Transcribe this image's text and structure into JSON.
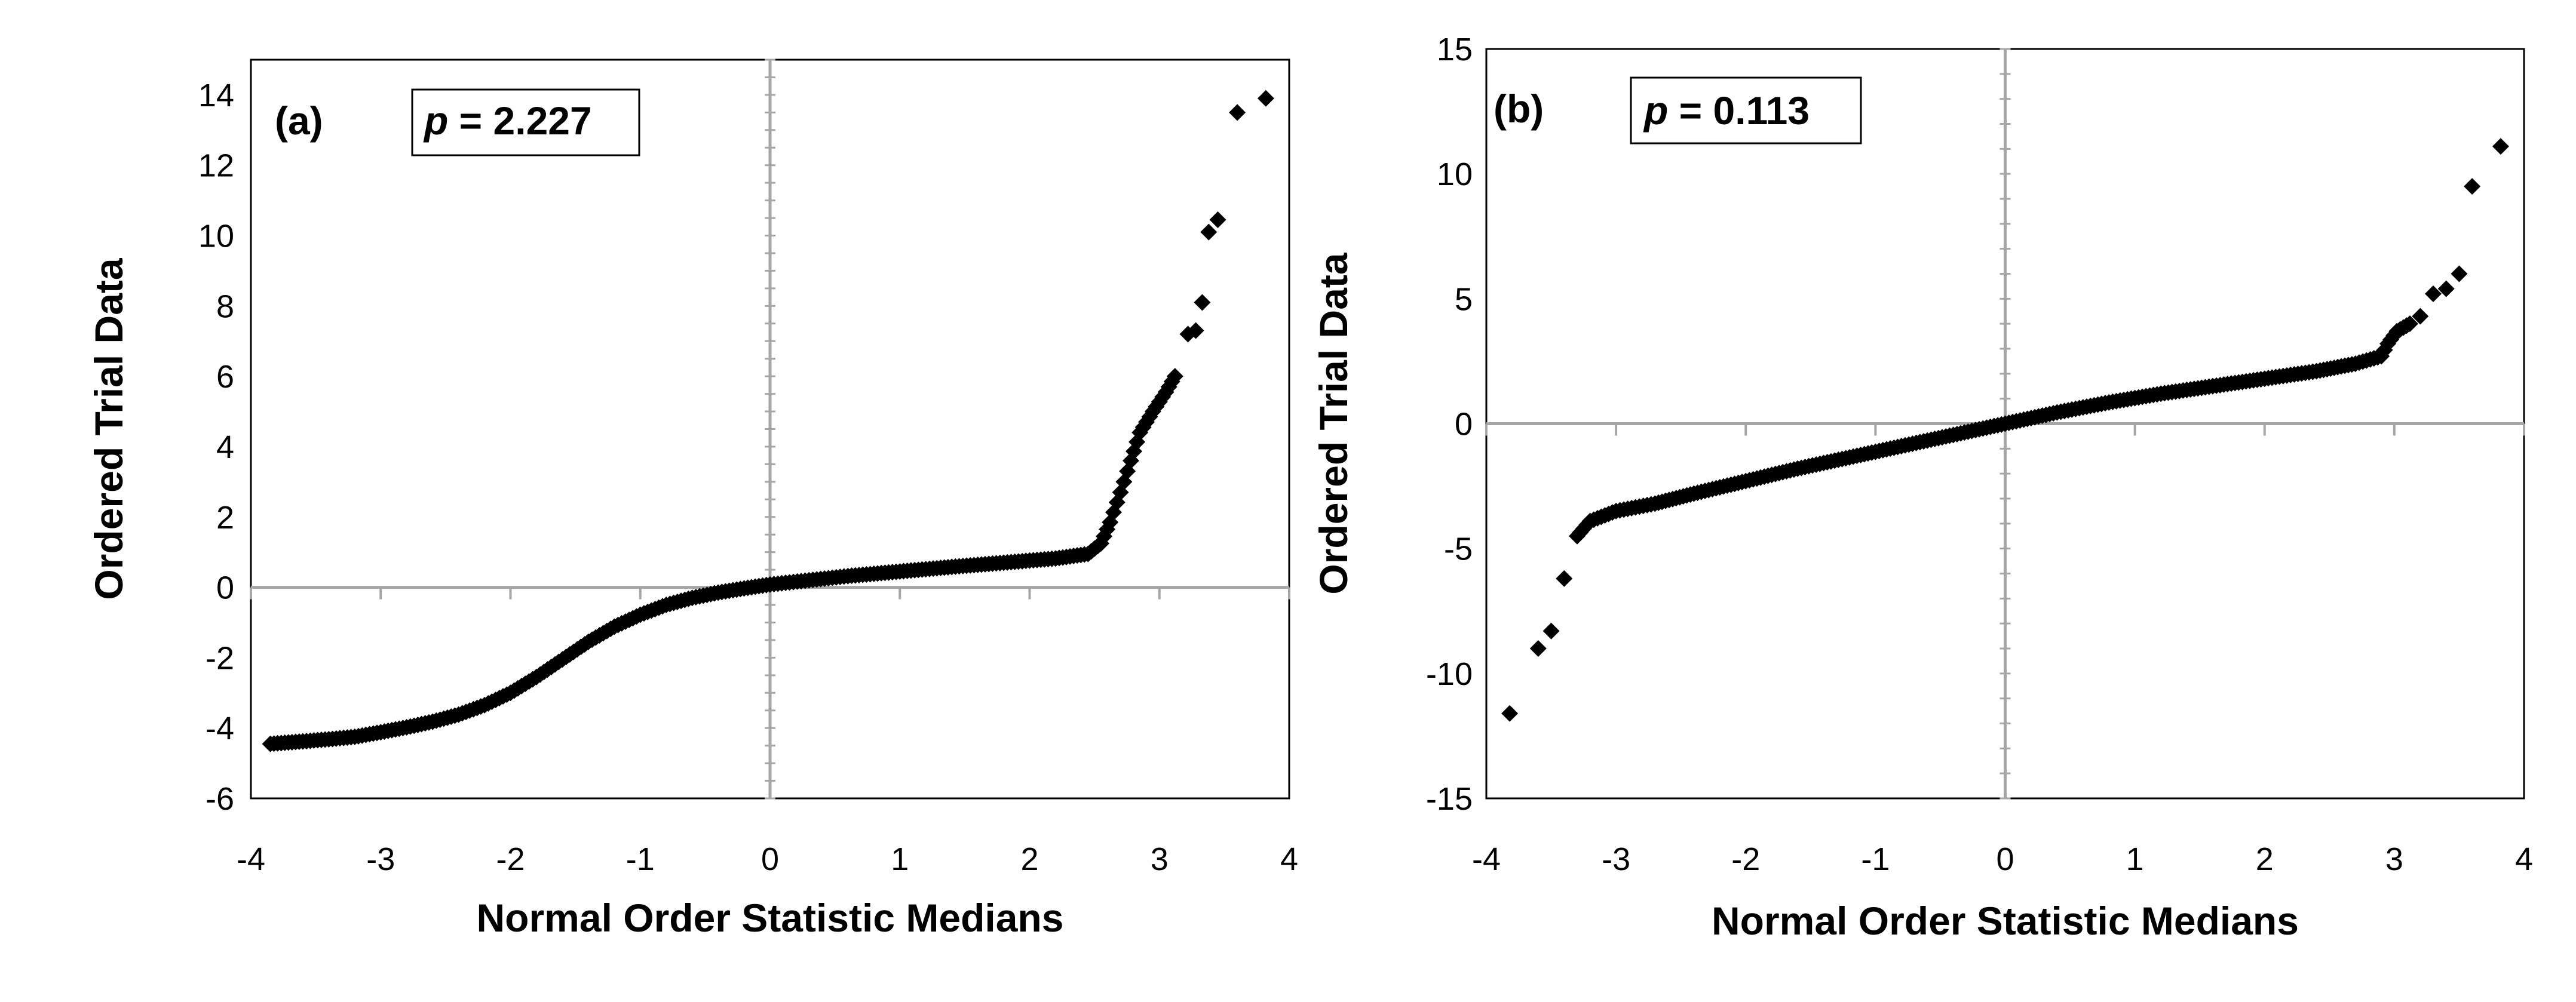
{
  "chart_data": [
    {
      "type": "scatter",
      "panel_label": "(a)",
      "annotation": {
        "symbol": "p",
        "equals": " = ",
        "value": "2.227"
      },
      "xlabel": "Normal Order Statistic Medians",
      "ylabel": "Ordered Trial Data",
      "xlim": [
        -4,
        4
      ],
      "ylim": [
        -6,
        15
      ],
      "xticks": [
        "-4",
        "-3",
        "-2",
        "-1",
        "0",
        "1",
        "2",
        "3",
        "4"
      ],
      "yticks": [
        "-6",
        "-4",
        "-2",
        "0",
        "2",
        "4",
        "6",
        "8",
        "10",
        "12",
        "14"
      ],
      "curve": [
        [
          -3.85,
          -4.45
        ],
        [
          -3.6,
          -4.38
        ],
        [
          -3.4,
          -4.32
        ],
        [
          -3.2,
          -4.25
        ],
        [
          -3.0,
          -4.12
        ],
        [
          -2.8,
          -3.98
        ],
        [
          -2.6,
          -3.82
        ],
        [
          -2.4,
          -3.62
        ],
        [
          -2.2,
          -3.35
        ],
        [
          -2.0,
          -3.0
        ],
        [
          -1.8,
          -2.55
        ],
        [
          -1.6,
          -2.05
        ],
        [
          -1.4,
          -1.55
        ],
        [
          -1.2,
          -1.12
        ],
        [
          -1.0,
          -0.78
        ],
        [
          -0.8,
          -0.5
        ],
        [
          -0.6,
          -0.3
        ],
        [
          -0.4,
          -0.15
        ],
        [
          -0.2,
          -0.03
        ],
        [
          0.0,
          0.08
        ],
        [
          0.3,
          0.2
        ],
        [
          0.6,
          0.32
        ],
        [
          1.0,
          0.45
        ],
        [
          1.4,
          0.58
        ],
        [
          1.8,
          0.7
        ],
        [
          2.2,
          0.82
        ],
        [
          2.45,
          0.95
        ],
        [
          2.55,
          1.25
        ],
        [
          2.62,
          1.85
        ],
        [
          2.7,
          2.7
        ],
        [
          2.78,
          3.6
        ],
        [
          2.85,
          4.4
        ],
        [
          2.95,
          5.0
        ],
        [
          3.05,
          5.55
        ],
        [
          3.12,
          6.0
        ]
      ],
      "outliers": [
        [
          3.22,
          7.2
        ],
        [
          3.28,
          7.3
        ],
        [
          3.33,
          8.1
        ],
        [
          3.38,
          10.1
        ],
        [
          3.45,
          10.45
        ],
        [
          3.6,
          13.5
        ],
        [
          3.82,
          13.9
        ]
      ],
      "series_label": "ordered trial data"
    },
    {
      "type": "scatter",
      "panel_label": "(b)",
      "annotation": {
        "symbol": "p",
        "equals": " = ",
        "value": "0.113"
      },
      "xlabel": "Normal Order Statistic Medians",
      "ylabel": "Ordered Trial Data",
      "xlim": [
        -4,
        4
      ],
      "ylim": [
        -15,
        15
      ],
      "xticks": [
        "-4",
        "-3",
        "-2",
        "-1",
        "0",
        "1",
        "2",
        "3",
        "4"
      ],
      "yticks": [
        "-15",
        "-10",
        "-5",
        "0",
        "5",
        "10",
        "15"
      ],
      "curve": [
        [
          -3.3,
          -4.5
        ],
        [
          -3.2,
          -3.9
        ],
        [
          -3.0,
          -3.5
        ],
        [
          -2.7,
          -3.2
        ],
        [
          -2.4,
          -2.8
        ],
        [
          -2.0,
          -2.3
        ],
        [
          -1.6,
          -1.8
        ],
        [
          -1.2,
          -1.35
        ],
        [
          -0.8,
          -0.9
        ],
        [
          -0.4,
          -0.45
        ],
        [
          0.0,
          0.0
        ],
        [
          0.4,
          0.45
        ],
        [
          0.8,
          0.85
        ],
        [
          1.2,
          1.2
        ],
        [
          1.6,
          1.5
        ],
        [
          2.0,
          1.8
        ],
        [
          2.4,
          2.1
        ],
        [
          2.7,
          2.4
        ],
        [
          2.9,
          2.7
        ],
        [
          2.95,
          3.2
        ],
        [
          3.02,
          3.7
        ],
        [
          3.12,
          4.0
        ]
      ],
      "outliers": [
        [
          -3.82,
          -11.6
        ],
        [
          -3.6,
          -9.0
        ],
        [
          -3.5,
          -8.3
        ],
        [
          -3.4,
          -6.2
        ],
        [
          3.2,
          4.3
        ],
        [
          3.3,
          5.2
        ],
        [
          3.4,
          5.4
        ],
        [
          3.5,
          6.0
        ],
        [
          3.6,
          9.5
        ],
        [
          3.82,
          11.1
        ]
      ],
      "series_label": "ordered trial data"
    }
  ]
}
